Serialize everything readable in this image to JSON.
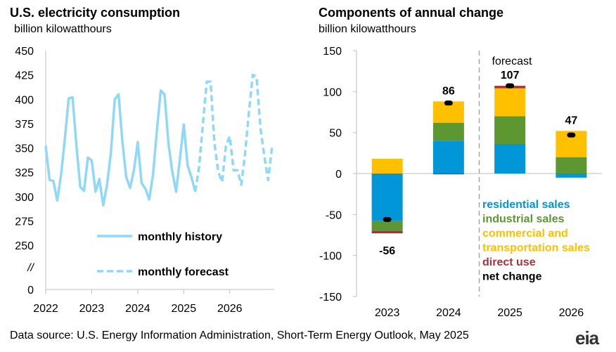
{
  "left_panel": {
    "title": "U.S. electricity consumption",
    "subtitle": "billion kilowatthours",
    "legend": {
      "history": "monthly history",
      "forecast": "monthly forecast"
    }
  },
  "right_panel": {
    "title": "Components of annual change",
    "subtitle": "billion kilowatthours",
    "forecast_label": "forecast",
    "legend": [
      "residential sales",
      "industrial sales",
      "commercial and",
      "transportation sales",
      "direct use",
      "net change"
    ]
  },
  "source": "Data source: U.S. Energy Information Administration, Short-Term Energy Outlook, May 2025",
  "logo": "eia",
  "colors": {
    "line": "#8fd8f8",
    "residential": "#0096d7",
    "industrial": "#5d9732",
    "commercial": "#ffc000",
    "direct_use": "#a33340",
    "net_change": "#000000"
  },
  "chart_data": [
    {
      "type": "line",
      "title": "U.S. electricity consumption",
      "ylabel": "billion kilowatthours",
      "ylim": [
        250,
        450
      ],
      "yticks": [
        "450",
        "425",
        "400",
        "375",
        "350",
        "325",
        "300",
        "275",
        "250"
      ],
      "y_break_labels": [
        "//",
        "0"
      ],
      "xticks": [
        "2022",
        "2023",
        "2024",
        "2025",
        "2026"
      ],
      "x_start": "2022-01",
      "grid": false,
      "series": [
        {
          "name": "monthly history",
          "style": "solid",
          "values": [
            352,
            317,
            316,
            296,
            322,
            360,
            401,
            402,
            353,
            310,
            306,
            340,
            337,
            305,
            318,
            291,
            312,
            345,
            400,
            405,
            356,
            320,
            309,
            327,
            356,
            314,
            308,
            297,
            323,
            368,
            409,
            405,
            355,
            326,
            305,
            339,
            374,
            332,
            320,
            305
          ]
        },
        {
          "name": "monthly forecast",
          "style": "dashed",
          "start_index": 39,
          "values": [
            305,
            330,
            375,
            418,
            418,
            355,
            325,
            315,
            352,
            362,
            327,
            327,
            312,
            345,
            387,
            425,
            423,
            370,
            342,
            317,
            350
          ]
        }
      ]
    },
    {
      "type": "bar",
      "stacked": true,
      "title": "Components of annual change",
      "ylabel": "billion kilowatthours",
      "categories": [
        "2023",
        "2024",
        "2025",
        "2026"
      ],
      "ylim": [
        -150,
        150
      ],
      "yticks": [
        "150",
        "100",
        "50",
        "0",
        "-50",
        "-100",
        "-150"
      ],
      "forecast_from": "2025",
      "grid": false,
      "series": [
        {
          "name": "residential sales",
          "values": [
            -58,
            40,
            36,
            -5
          ]
        },
        {
          "name": "industrial sales",
          "values": [
            -12,
            22,
            34,
            20
          ]
        },
        {
          "name": "commercial and transportation sales",
          "values": [
            18,
            26,
            34,
            32
          ]
        },
        {
          "name": "direct use",
          "values": [
            -3,
            -1,
            3,
            0
          ]
        }
      ],
      "net_change": [
        -56,
        86,
        107,
        47
      ],
      "net_labels": [
        "-56",
        "86",
        "107",
        "47"
      ]
    }
  ]
}
